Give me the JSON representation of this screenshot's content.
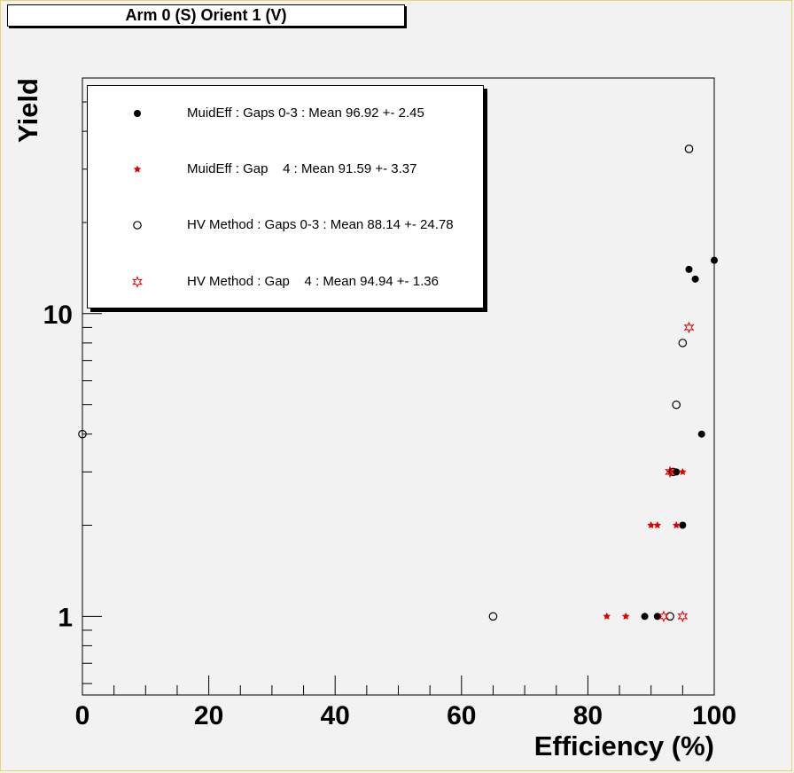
{
  "title": "Arm 0 (S) Orient 1 (V)",
  "chart_data": {
    "type": "scatter",
    "title": "Arm 0 (S) Orient 1 (V)",
    "xlabel": "Efficiency (%)",
    "ylabel": "Yield",
    "xlim": [
      0,
      100
    ],
    "ylim": [
      0.55,
      60
    ],
    "yscale": "log",
    "x_ticks": [
      "0",
      "20",
      "40",
      "60",
      "80",
      "100"
    ],
    "y_ticks": [
      "1",
      "10"
    ],
    "legend": "top-left",
    "series": [
      {
        "name": "MuidEff : Gaps 0-3 : Mean 96.92 +- 2.45",
        "marker": "filled-circle",
        "color": "#000000",
        "points": [
          [
            89,
            1
          ],
          [
            91,
            1
          ],
          [
            94,
            3
          ],
          [
            95,
            2
          ],
          [
            96,
            14
          ],
          [
            97,
            13
          ],
          [
            98,
            4
          ],
          [
            100,
            15
          ]
        ]
      },
      {
        "name": "MuidEff : Gap    4 : Mean 91.59 +- 3.37",
        "marker": "star",
        "color": "#e00000",
        "points": [
          [
            83,
            1
          ],
          [
            86,
            1
          ],
          [
            90,
            2
          ],
          [
            91,
            2
          ],
          [
            93,
            3
          ],
          [
            94,
            2
          ],
          [
            95,
            3
          ]
        ]
      },
      {
        "name": "HV Method : Gaps 0-3 : Mean 88.14 +- 24.78",
        "marker": "open-circle",
        "color": "#000000",
        "points": [
          [
            0,
            4
          ],
          [
            65,
            1
          ],
          [
            93,
            1
          ],
          [
            93.5,
            3
          ],
          [
            94,
            5
          ],
          [
            95,
            8
          ],
          [
            96,
            35
          ]
        ]
      },
      {
        "name": "HV Method : Gap    4 : Mean 94.94 +- 1.36",
        "marker": "open-star",
        "color": "#e00000",
        "points": [
          [
            92,
            1
          ],
          [
            93,
            3
          ],
          [
            95,
            1
          ],
          [
            96,
            9
          ]
        ]
      }
    ]
  }
}
